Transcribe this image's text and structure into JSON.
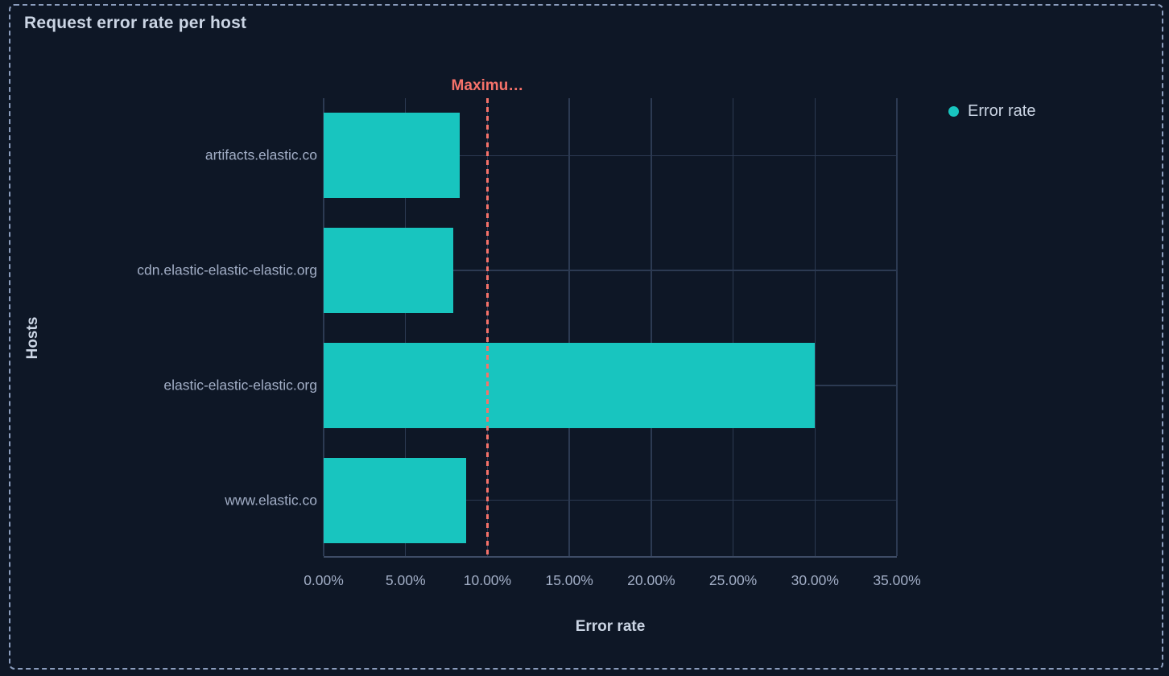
{
  "panel": {
    "title": "Request error rate per host"
  },
  "legend": {
    "position": "right",
    "items": [
      {
        "label": "Error rate",
        "color": "#18c5bf"
      }
    ]
  },
  "chart_data": {
    "type": "bar",
    "orientation": "horizontal",
    "title": "Request error rate per host",
    "categories": [
      "artifacts.elastic.co",
      "cdn.elastic-elastic-elastic.org",
      "elastic-elastic-elastic.org",
      "www.elastic.co"
    ],
    "series": [
      {
        "name": "Error rate",
        "values_percent": [
          8.3,
          7.9,
          30.0,
          8.7
        ]
      }
    ],
    "xlabel": "Error rate",
    "ylabel": "Hosts",
    "xlim_percent": [
      0,
      35
    ],
    "x_ticks": [
      "0.00%",
      "5.00%",
      "10.00%",
      "15.00%",
      "20.00%",
      "25.00%",
      "30.00%",
      "35.00%"
    ],
    "grid": true,
    "legend_position": "right",
    "annotation": {
      "label": "Maximu…",
      "value_percent": 10,
      "style": "dashed",
      "color": "#f6726a"
    }
  },
  "colors": {
    "bg": "#0e1726",
    "panel_border": "#8b9dbd",
    "bar": "#18c5bf",
    "annotation": "#f6726a",
    "grid": "#2c3a52",
    "axis": "#3e4c66",
    "text_primary": "#cbd5e4",
    "text_secondary": "#a2aec6"
  }
}
